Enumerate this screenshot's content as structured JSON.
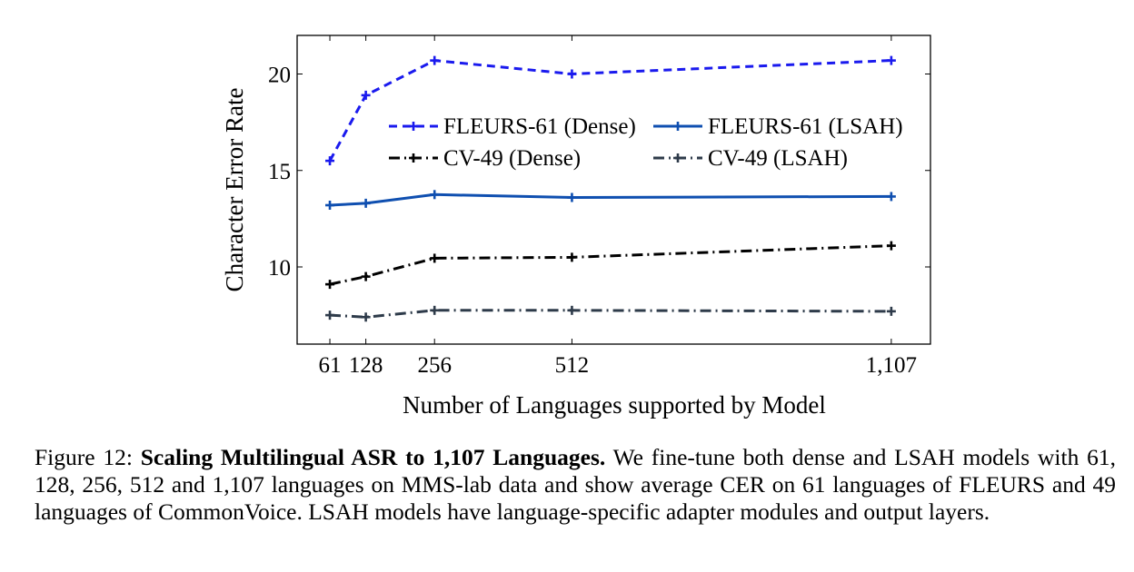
{
  "chart_data": {
    "type": "line",
    "x": [
      61,
      128,
      256,
      512,
      1107
    ],
    "x_tick_labels": [
      "61",
      "128",
      "256",
      "512",
      "1,107"
    ],
    "y_ticks": [
      10,
      15,
      20
    ],
    "y_tick_labels": [
      "10",
      "15",
      "20"
    ],
    "xlim": [
      0,
      1180
    ],
    "ylim": [
      6.0,
      22.0
    ],
    "xlabel": "Number of Languages supported by Model",
    "ylabel": "Character Error Rate",
    "grid": false,
    "legend_position": "center-top",
    "series": [
      {
        "name": "FLEURS-61 (Dense)",
        "color": "#1a1aee",
        "style": "dashed",
        "values": [
          15.5,
          18.9,
          20.7,
          20.0,
          20.7
        ]
      },
      {
        "name": "FLEURS-61 (LSAH)",
        "color": "#0f4fb0",
        "style": "solid",
        "values": [
          13.2,
          13.3,
          13.75,
          13.6,
          13.65
        ]
      },
      {
        "name": "CV-49 (Dense)",
        "color": "#000000",
        "style": "dashdot",
        "values": [
          9.1,
          9.5,
          10.45,
          10.5,
          11.1
        ]
      },
      {
        "name": "CV-49 (LSAH)",
        "color": "#2e3b4a",
        "style": "dashdot",
        "values": [
          7.5,
          7.4,
          7.75,
          7.75,
          7.7
        ]
      }
    ]
  },
  "caption": {
    "prefix": "Figure 12: ",
    "bold": "Scaling Multilingual ASR to 1,107 Languages.",
    "text": " We fine-tune both dense and LSAH models with 61, 128, 256, 512 and 1,107 languages on MMS-lab data and show average CER on 61 languages of FLEURS and 49 languages of CommonVoice. LSAH models have language-specific adapter modules and output layers."
  }
}
